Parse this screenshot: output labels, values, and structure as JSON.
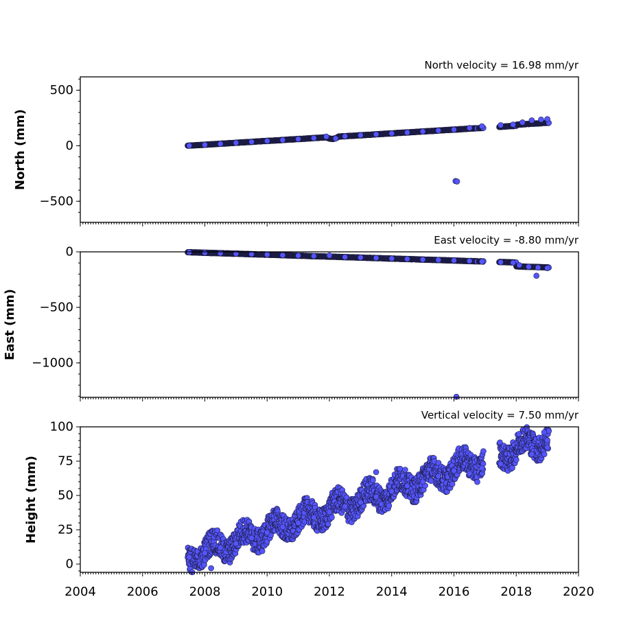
{
  "chart_data": [
    {
      "type": "scatter",
      "title": "North velocity = 16.98 mm/yr",
      "xlabel": "",
      "ylabel": "North (mm)",
      "xlim": [
        2004,
        2020
      ],
      "ylim": [
        -690,
        620
      ],
      "xticks": [
        "2004",
        "2006",
        "2008",
        "2010",
        "2012",
        "2014",
        "2016",
        "2018",
        "2020"
      ],
      "yticks": [
        {
          "v": 500,
          "label": "500"
        },
        {
          "v": 0,
          "label": "0"
        },
        {
          "v": -500,
          "label": "−500"
        }
      ],
      "color": "#5555ff",
      "trend": {
        "x0": 2007.45,
        "y0": 0,
        "rate": 16.98
      },
      "points": [
        [
          2007.5,
          1
        ],
        [
          2008.0,
          8
        ],
        [
          2008.5,
          17
        ],
        [
          2009.0,
          26
        ],
        [
          2009.5,
          34
        ],
        [
          2010.0,
          43
        ],
        [
          2010.5,
          51
        ],
        [
          2011.0,
          60
        ],
        [
          2011.5,
          68
        ],
        [
          2011.9,
          82
        ],
        [
          2012.2,
          65
        ],
        [
          2012.5,
          85
        ],
        [
          2013.0,
          94
        ],
        [
          2013.5,
          102
        ],
        [
          2014.0,
          111
        ],
        [
          2014.5,
          119
        ],
        [
          2015.0,
          128
        ],
        [
          2015.5,
          137
        ],
        [
          2016.0,
          145
        ],
        [
          2016.5,
          160
        ],
        [
          2016.9,
          175
        ],
        [
          2017.5,
          185
        ],
        [
          2017.9,
          190
        ],
        [
          2018.2,
          210
        ],
        [
          2018.5,
          228
        ],
        [
          2018.8,
          235
        ],
        [
          2019.0,
          240
        ],
        [
          2016.05,
          -318
        ],
        [
          2016.1,
          -322
        ]
      ]
    },
    {
      "type": "scatter",
      "title": "East velocity = -8.80 mm/yr",
      "xlabel": "",
      "ylabel": "East (mm)",
      "xlim": [
        2004,
        2020
      ],
      "ylim": [
        -1310,
        0
      ],
      "xticks": [
        "2004",
        "2006",
        "2008",
        "2010",
        "2012",
        "2014",
        "2016",
        "2018",
        "2020"
      ],
      "yticks": [
        {
          "v": 0,
          "label": "0"
        },
        {
          "v": -500,
          "label": "−500"
        },
        {
          "v": -1000,
          "label": "−1000"
        }
      ],
      "color": "#5555ff",
      "trend": {
        "x0": 2007.45,
        "y0": -3,
        "rate": -8.8
      },
      "points": [
        [
          2007.5,
          -3
        ],
        [
          2008.0,
          -8
        ],
        [
          2008.5,
          -12
        ],
        [
          2009.0,
          -16
        ],
        [
          2009.5,
          -21
        ],
        [
          2010.0,
          -25
        ],
        [
          2010.5,
          -30
        ],
        [
          2011.0,
          -34
        ],
        [
          2011.5,
          -38
        ],
        [
          2012.0,
          -33
        ],
        [
          2012.5,
          -47
        ],
        [
          2013.0,
          -51
        ],
        [
          2013.5,
          -55
        ],
        [
          2014.0,
          -60
        ],
        [
          2014.5,
          -64
        ],
        [
          2015.0,
          -69
        ],
        [
          2015.5,
          -73
        ],
        [
          2016.0,
          -77
        ],
        [
          2016.5,
          -82
        ],
        [
          2016.9,
          -88
        ],
        [
          2017.5,
          -93
        ],
        [
          2017.9,
          -98
        ],
        [
          2018.1,
          -120
        ],
        [
          2018.4,
          -135
        ],
        [
          2018.7,
          -142
        ],
        [
          2019.0,
          -147
        ],
        [
          2018.65,
          -215
        ],
        [
          2016.08,
          -1305
        ]
      ]
    },
    {
      "type": "scatter",
      "title": "Vertical velocity = 7.50 mm/yr",
      "xlabel": "",
      "ylabel": "Height (mm)",
      "xlim": [
        2004,
        2020
      ],
      "ylim": [
        -6,
        100
      ],
      "xticks": [
        "2004",
        "2006",
        "2008",
        "2010",
        "2012",
        "2014",
        "2016",
        "2018",
        "2020"
      ],
      "yticks": [
        {
          "v": 100,
          "label": "100"
        },
        {
          "v": 75,
          "label": "75"
        },
        {
          "v": 50,
          "label": "50"
        },
        {
          "v": 25,
          "label": "25"
        },
        {
          "v": 0,
          "label": "0"
        }
      ],
      "color": "#5555ff",
      "trend": {
        "x0": 2007.45,
        "y0": 5,
        "rate": 7.5
      },
      "points": [
        [
          2007.5,
          5
        ],
        [
          2008.0,
          8
        ],
        [
          2008.5,
          12
        ],
        [
          2009.0,
          15
        ],
        [
          2009.5,
          19
        ],
        [
          2010.0,
          23
        ],
        [
          2010.5,
          27
        ],
        [
          2011.0,
          30
        ],
        [
          2011.5,
          34
        ],
        [
          2012.0,
          38
        ],
        [
          2012.5,
          42
        ],
        [
          2013.0,
          45
        ],
        [
          2013.5,
          49
        ],
        [
          2014.0,
          53
        ],
        [
          2014.5,
          57
        ],
        [
          2015.0,
          60
        ],
        [
          2015.5,
          64
        ],
        [
          2016.0,
          68
        ],
        [
          2016.5,
          66
        ],
        [
          2016.9,
          70
        ],
        [
          2017.5,
          73
        ],
        [
          2018.0,
          76
        ],
        [
          2018.5,
          80
        ],
        [
          2019.0,
          85
        ],
        [
          2008.2,
          -3
        ],
        [
          2013.5,
          67
        ],
        [
          2018.9,
          96
        ]
      ]
    }
  ]
}
